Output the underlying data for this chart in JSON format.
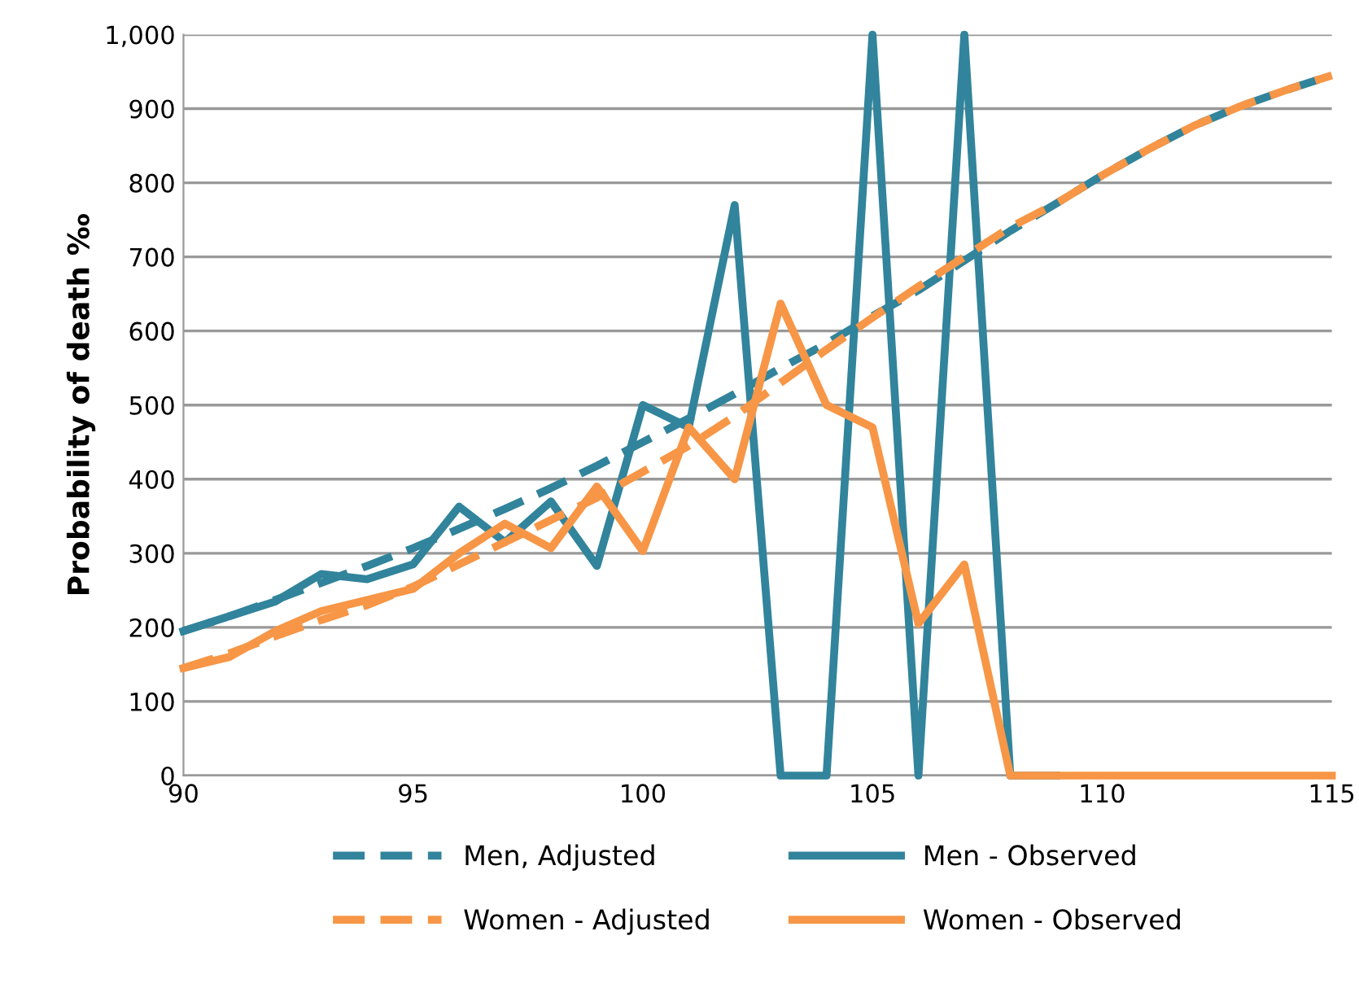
{
  "chart_data": {
    "type": "line",
    "ylabel": "Probability of death ‰",
    "x": [
      90,
      91,
      92,
      93,
      94,
      95,
      96,
      97,
      98,
      99,
      100,
      101,
      102,
      103,
      104,
      105,
      106,
      107,
      108,
      109,
      110,
      111,
      112,
      113,
      114,
      115
    ],
    "series": [
      {
        "name": "Men, Adjusted",
        "color": "#31849b",
        "line_style": "dashed",
        "values": [
          195,
          215,
          237,
          260,
          283,
          307,
          333,
          360,
          388,
          418,
          450,
          482,
          515,
          550,
          583,
          620,
          655,
          695,
          735,
          772,
          810,
          845,
          877,
          903,
          925,
          945
        ]
      },
      {
        "name": "Men - Observed",
        "color": "#31849b",
        "line_style": "solid",
        "values": [
          195,
          215,
          235,
          272,
          265,
          285,
          363,
          315,
          370,
          283,
          500,
          470,
          770,
          0,
          0,
          1000,
          0,
          1000,
          0,
          0,
          null,
          null,
          null,
          null,
          null,
          null
        ]
      },
      {
        "name": "Women - Adjusted",
        "color": "#f79646",
        "line_style": "dashed",
        "values": [
          145,
          165,
          188,
          210,
          230,
          255,
          285,
          315,
          345,
          375,
          410,
          445,
          485,
          530,
          575,
          618,
          660,
          700,
          740,
          772,
          810,
          845,
          877,
          903,
          925,
          945
        ]
      },
      {
        "name": "Women - Observed",
        "color": "#f79646",
        "line_style": "solid",
        "values": [
          145,
          160,
          195,
          222,
          237,
          252,
          300,
          340,
          307,
          390,
          303,
          470,
          400,
          637,
          500,
          470,
          205,
          285,
          0,
          0,
          0,
          0,
          0,
          0,
          0,
          0
        ]
      }
    ],
    "xlim": [
      90,
      115
    ],
    "xticks": [
      90,
      95,
      100,
      105,
      110,
      115
    ],
    "ylim": [
      0,
      1000
    ],
    "yticks": [
      0,
      100,
      200,
      300,
      400,
      500,
      600,
      700,
      800,
      900,
      {
        "value": 1000,
        "label": "1,000"
      }
    ],
    "grid": "y",
    "legend": "bottom",
    "marker": "none"
  }
}
